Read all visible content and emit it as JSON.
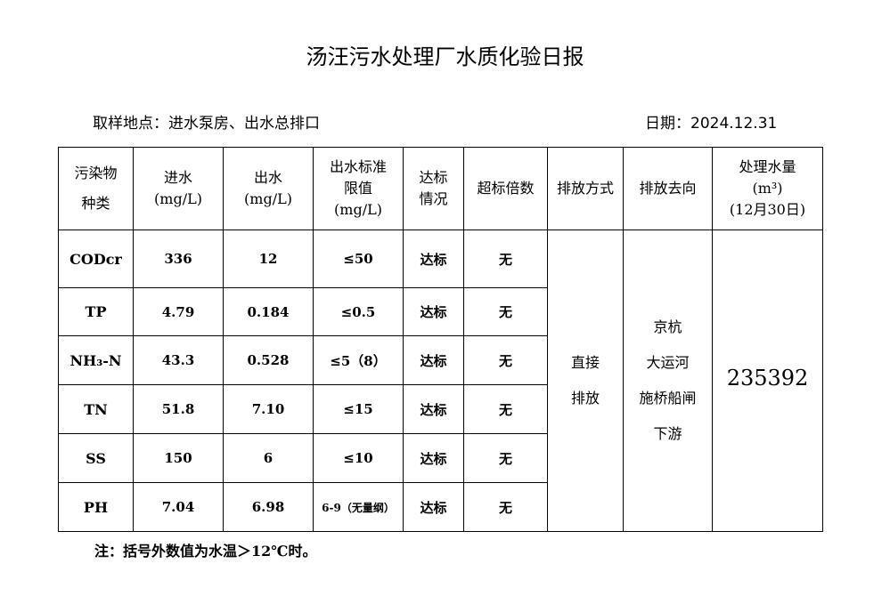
{
  "title": "汤汪污水处理厂水质化验日报",
  "location": "取样地点：进水泵房、出水总排口",
  "date": "日期：2024.12.31",
  "headers": {
    "pollutant": "污染物\n种类",
    "inflow": "进水\n(mg/L)",
    "outflow": "出水\n(mg/L)",
    "limit": "出水标准\n限值\n(mg/L)",
    "status": "达标\n情况",
    "exceed": "超标倍数",
    "discharge_method": "排放方式",
    "discharge_dest": "排放去向",
    "volume": "处理水量\n(m³)\n(12月30日)"
  },
  "rows": [
    {
      "name": "CODcr",
      "in": "336",
      "out": "12",
      "limit": "≤50",
      "status": "达标",
      "exceed": "无"
    },
    {
      "name": "TP",
      "in": "4.79",
      "out": "0.184",
      "limit": "≤0.5",
      "status": "达标",
      "exceed": "无"
    },
    {
      "name": "NH₃-N",
      "in": "43.3",
      "out": "0.528",
      "limit": "≤5（8）",
      "status": "达标",
      "exceed": "无"
    },
    {
      "name": "TN",
      "in": "51.8",
      "out": "7.10",
      "limit": "≤15",
      "status": "达标",
      "exceed": "无"
    },
    {
      "name": "SS",
      "in": "150",
      "out": "6",
      "limit": "≤10",
      "status": "达标",
      "exceed": "无"
    },
    {
      "name": "PH",
      "in": "7.04",
      "out": "6.98",
      "limit": "6-9（无量纲）",
      "status": "达标",
      "exceed": "无"
    }
  ],
  "discharge_method": "直接\n排放",
  "discharge_dest": "京杭\n大运河\n施桥船闸\n下游",
  "volume": "235392",
  "note": "注：括号外数值为水温＞12℃时。"
}
